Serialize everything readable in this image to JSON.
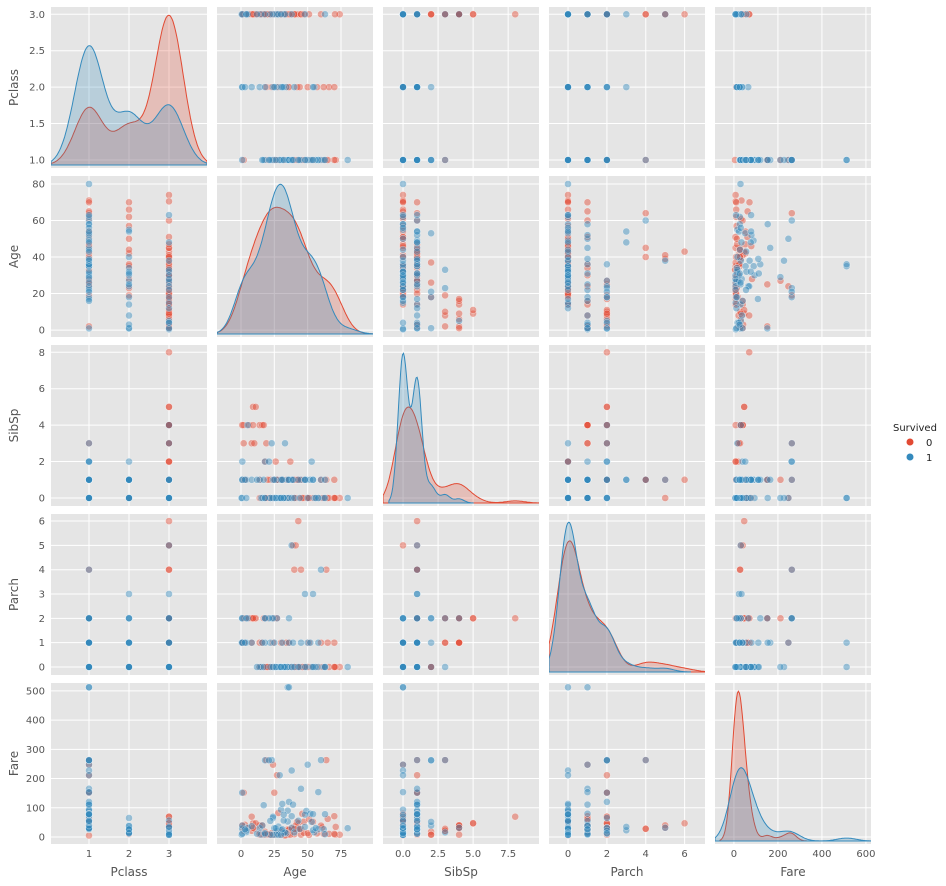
{
  "chart_data": {
    "type": "scatter",
    "kind": "pairplot",
    "variables": [
      "Pclass",
      "Age",
      "SibSp",
      "Parch",
      "Fare"
    ],
    "axes": {
      "Pclass": {
        "range": [
          0.05,
          3.95
        ],
        "ticks": [
          1,
          2,
          3
        ],
        "yticks": [
          "1.0",
          "1.5",
          "2.0",
          "2.5",
          "3.0"
        ],
        "yvals": [
          1,
          1.5,
          2,
          2.5,
          3
        ],
        "yrange": [
          0.89,
          3.1
        ],
        "xticklabels": [
          "1",
          "2",
          "3"
        ]
      },
      "Age": {
        "range": [
          -18,
          99
        ],
        "ticks": [
          0,
          25,
          50,
          75
        ],
        "xticklabels": [
          "0",
          "25",
          "50",
          "75"
        ],
        "yvals": [
          0,
          20,
          40,
          60,
          80
        ],
        "yticks": [
          "0",
          "20",
          "40",
          "60",
          "80"
        ],
        "yrange": [
          -3.8,
          84.4
        ]
      },
      "SibSp": {
        "range": [
          -1.43,
          9.7
        ],
        "ticks": [
          0,
          2.5,
          5,
          7.5
        ],
        "xticklabels": [
          "0.0",
          "2.5",
          "5.0",
          "7.5"
        ],
        "yvals": [
          0,
          2,
          4,
          6,
          8
        ],
        "yticks": [
          "0",
          "2",
          "4",
          "6",
          "8"
        ],
        "yrange": [
          -0.44,
          8.4
        ]
      },
      "Parch": {
        "range": [
          -0.98,
          7.05
        ],
        "ticks": [
          0,
          2,
          4,
          6
        ],
        "xticklabels": [
          "0",
          "2",
          "4",
          "6"
        ],
        "yvals": [
          0,
          1,
          2,
          3,
          4,
          5,
          6
        ],
        "yticks": [
          "0",
          "1",
          "2",
          "3",
          "4",
          "5",
          "6"
        ],
        "yrange": [
          -0.33,
          6.29
        ]
      },
      "Fare": {
        "range": [
          -86,
          623
        ],
        "ticks": [
          0,
          200,
          400,
          600
        ],
        "xticklabels": [
          "0",
          "200",
          "400",
          "600"
        ],
        "yvals": [
          0,
          100,
          200,
          300,
          400,
          500
        ],
        "yticks": [
          "0",
          "100",
          "200",
          "300",
          "400",
          "500"
        ],
        "yrange": [
          -24,
          527
        ]
      }
    },
    "legend": {
      "title": "Survived",
      "entries": [
        "0",
        "1"
      ],
      "placement": "right"
    },
    "colors": {
      "0": "#E24A33",
      "1": "#348ABD",
      "background": "#E5E5E5",
      "grid": "#FFFFFF"
    },
    "columns": [
      "Pclass",
      "Age",
      "SibSp",
      "Parch",
      "Fare",
      "Survived"
    ],
    "points": [
      [
        3,
        22,
        1,
        0,
        7.25,
        0
      ],
      [
        1,
        38,
        1,
        0,
        71.28,
        1
      ],
      [
        3,
        26,
        0,
        0,
        7.93,
        1
      ],
      [
        1,
        35,
        1,
        0,
        53.1,
        1
      ],
      [
        3,
        35,
        0,
        0,
        8.05,
        0
      ],
      [
        1,
        54,
        0,
        0,
        51.86,
        0
      ],
      [
        3,
        2,
        3,
        1,
        21.08,
        0
      ],
      [
        3,
        27,
        0,
        2,
        11.13,
        1
      ],
      [
        2,
        14,
        1,
        0,
        30.07,
        1
      ],
      [
        3,
        4,
        1,
        1,
        16.7,
        1
      ],
      [
        1,
        58,
        0,
        0,
        26.55,
        1
      ],
      [
        3,
        20,
        0,
        0,
        8.05,
        0
      ],
      [
        3,
        39,
        1,
        5,
        31.28,
        0
      ],
      [
        3,
        14,
        0,
        0,
        7.85,
        0
      ],
      [
        2,
        55,
        0,
        0,
        16,
        1
      ],
      [
        3,
        2,
        4,
        1,
        29.13,
        0
      ],
      [
        3,
        31,
        1,
        0,
        18,
        0
      ],
      [
        2,
        35,
        0,
        0,
        26,
        0
      ],
      [
        2,
        34,
        0,
        0,
        13,
        1
      ],
      [
        3,
        15,
        0,
        0,
        8.03,
        1
      ],
      [
        1,
        28,
        0,
        0,
        35.5,
        1
      ],
      [
        3,
        8,
        3,
        1,
        21.08,
        0
      ],
      [
        3,
        38,
        1,
        5,
        31.39,
        1
      ],
      [
        1,
        19,
        3,
        2,
        263,
        0
      ],
      [
        3,
        40,
        1,
        0,
        9.48,
        0
      ],
      [
        2,
        66,
        0,
        0,
        10.5,
        0
      ],
      [
        1,
        28,
        1,
        0,
        82.17,
        0
      ],
      [
        1,
        42,
        1,
        0,
        52,
        0
      ],
      [
        3,
        21,
        0,
        0,
        8.05,
        0
      ],
      [
        3,
        18,
        2,
        0,
        18,
        0
      ],
      [
        3,
        14,
        1,
        0,
        11.24,
        0
      ],
      [
        2,
        27,
        1,
        0,
        21,
        1
      ],
      [
        3,
        3,
        1,
        2,
        41.58,
        0
      ],
      [
        3,
        9,
        5,
        2,
        46.9,
        0
      ],
      [
        3,
        14,
        4,
        1,
        39.69,
        0
      ],
      [
        3,
        16,
        4,
        1,
        39.69,
        0
      ],
      [
        3,
        10,
        3,
        2,
        27.9,
        0
      ],
      [
        1,
        35,
        0,
        0,
        512.33,
        1
      ],
      [
        1,
        36,
        0,
        1,
        512.33,
        1
      ],
      [
        1,
        24,
        0,
        1,
        247.52,
        0
      ],
      [
        1,
        50,
        0,
        1,
        247.52,
        1
      ],
      [
        1,
        23,
        3,
        2,
        263,
        1
      ],
      [
        1,
        64,
        1,
        4,
        263,
        0
      ],
      [
        1,
        60,
        1,
        4,
        263,
        1
      ],
      [
        3,
        43,
        1,
        6,
        46.9,
        0
      ],
      [
        3,
        41,
        0,
        5,
        39.69,
        0
      ],
      [
        3,
        45,
        1,
        4,
        27.9,
        0
      ],
      [
        3,
        40,
        1,
        4,
        27.9,
        0
      ],
      [
        2,
        54,
        1,
        3,
        23,
        1
      ],
      [
        2,
        24,
        1,
        2,
        65,
        1
      ],
      [
        1,
        80,
        0,
        0,
        30,
        1
      ],
      [
        2,
        0.83,
        0,
        2,
        29,
        1
      ],
      [
        3,
        0.42,
        0,
        1,
        8.52,
        1
      ],
      [
        1,
        0.92,
        1,
        2,
        151.55,
        1
      ],
      [
        2,
        1,
        2,
        1,
        39,
        1
      ],
      [
        3,
        1,
        1,
        1,
        11.13,
        1
      ],
      [
        1,
        2,
        1,
        2,
        151.55,
        0
      ],
      [
        3,
        74,
        0,
        0,
        7.78,
        0
      ],
      [
        1,
        71,
        0,
        0,
        34.65,
        0
      ],
      [
        1,
        70,
        1,
        1,
        71,
        0
      ],
      [
        3,
        70.5,
        0,
        0,
        7.75,
        0
      ],
      [
        2,
        70,
        0,
        0,
        10.5,
        0
      ],
      [
        1,
        65,
        0,
        1,
        61.98,
        0
      ],
      [
        1,
        62,
        0,
        0,
        26.55,
        1
      ],
      [
        1,
        63,
        1,
        0,
        77.96,
        1
      ],
      [
        3,
        63,
        0,
        0,
        9.59,
        1
      ],
      [
        1,
        18,
        2,
        2,
        262.38,
        1
      ],
      [
        1,
        24,
        0,
        0,
        69.3,
        1
      ],
      [
        1,
        35,
        1,
        0,
        90,
        1
      ],
      [
        1,
        49,
        1,
        0,
        89.1,
        1
      ],
      [
        1,
        45,
        1,
        1,
        164.87,
        1
      ],
      [
        1,
        17,
        1,
        0,
        108.9,
        1
      ],
      [
        1,
        30,
        0,
        0,
        93.5,
        1
      ],
      [
        1,
        22,
        0,
        1,
        55,
        1
      ],
      [
        1,
        31,
        1,
        0,
        113.28,
        1
      ],
      [
        1,
        36,
        1,
        2,
        120,
        1
      ],
      [
        1,
        38,
        0,
        0,
        227.53,
        1
      ],
      [
        1,
        21,
        2,
        2,
        262.38,
        1
      ],
      [
        1,
        58,
        0,
        1,
        153.46,
        1
      ],
      [
        1,
        25,
        1,
        2,
        151.55,
        0
      ],
      [
        1,
        27,
        1,
        2,
        211.5,
        0
      ],
      [
        3,
        8,
        null,
        2,
        69.55,
        0
      ],
      [
        3,
        null,
        8,
        2,
        69.55,
        0
      ],
      [
        3,
        25,
        0,
        0,
        7.05,
        0
      ],
      [
        3,
        29,
        0,
        0,
        7.9,
        0
      ],
      [
        3,
        33,
        0,
        0,
        8.65,
        0
      ],
      [
        3,
        19,
        0,
        0,
        7.78,
        0
      ],
      [
        3,
        23,
        0,
        0,
        7.23,
        0
      ],
      [
        3,
        30,
        1,
        1,
        15.5,
        0
      ],
      [
        3,
        45,
        0,
        0,
        7.75,
        0
      ],
      [
        3,
        47,
        1,
        0,
        14.5,
        0
      ],
      [
        3,
        51,
        0,
        0,
        7.05,
        0
      ],
      [
        3,
        26,
        2,
        0,
        8.66,
        0
      ],
      [
        3,
        24,
        0,
        0,
        7.5,
        1
      ],
      [
        3,
        22,
        0,
        0,
        7.75,
        1
      ],
      [
        3,
        18,
        0,
        1,
        9.35,
        1
      ],
      [
        3,
        5,
        4,
        2,
        31.39,
        1
      ],
      [
        3,
        4,
        0,
        2,
        22.03,
        1
      ],
      [
        3,
        32,
        0,
        0,
        56.5,
        1
      ],
      [
        3,
        28,
        0,
        0,
        7.23,
        1
      ],
      [
        2,
        28,
        0,
        0,
        13,
        0
      ],
      [
        2,
        36,
        1,
        0,
        26,
        0
      ],
      [
        2,
        42,
        1,
        0,
        26,
        0
      ],
      [
        2,
        30,
        1,
        0,
        24,
        1
      ],
      [
        2,
        25,
        1,
        1,
        30,
        1
      ],
      [
        2,
        19,
        0,
        0,
        10.5,
        0
      ],
      [
        2,
        32,
        0,
        0,
        13,
        1
      ],
      [
        2,
        44,
        1,
        0,
        26,
        0
      ],
      [
        2,
        50,
        0,
        0,
        13,
        0
      ],
      [
        2,
        57,
        0,
        0,
        12.35,
        0
      ],
      [
        2,
        3,
        1,
        1,
        26,
        1
      ],
      [
        2,
        8,
        1,
        1,
        36.75,
        1
      ],
      [
        2,
        40,
        0,
        0,
        15.75,
        1
      ],
      [
        2,
        23,
        0,
        0,
        13,
        0
      ],
      [
        2,
        62,
        0,
        0,
        10.5,
        0
      ],
      [
        1,
        47,
        0,
        0,
        52,
        0
      ],
      [
        1,
        46,
        0,
        0,
        79.2,
        0
      ],
      [
        1,
        56,
        0,
        0,
        30.7,
        1
      ],
      [
        1,
        40,
        0,
        0,
        27.72,
        0
      ],
      [
        1,
        33,
        0,
        0,
        5,
        0
      ],
      [
        1,
        52,
        1,
        1,
        79.65,
        1
      ],
      [
        1,
        39,
        1,
        1,
        110.88,
        1
      ],
      [
        1,
        48,
        1,
        0,
        76.73,
        1
      ],
      [
        1,
        29,
        0,
        0,
        211.34,
        1
      ],
      [
        1,
        32,
        0,
        0,
        76.29,
        1
      ],
      [
        1,
        44,
        0,
        0,
        27.72,
        1
      ],
      [
        1,
        26,
        0,
        0,
        30,
        1
      ],
      [
        1,
        16,
        0,
        1,
        39.4,
        1
      ],
      [
        1,
        53,
        2,
        0,
        51.48,
        1
      ],
      [
        1,
        61,
        0,
        0,
        32.32,
        0
      ],
      [
        3,
        33,
        3,
        0,
        15.85,
        1
      ],
      [
        3,
        20,
        1,
        0,
        9.83,
        0
      ],
      [
        3,
        37,
        2,
        0,
        7.92,
        0
      ],
      [
        3,
        17,
        4,
        2,
        7.93,
        0
      ],
      [
        3,
        11,
        5,
        2,
        46.9,
        0
      ],
      [
        3,
        6,
        4,
        2,
        31.28,
        0
      ],
      [
        3,
        9,
        4,
        2,
        31.28,
        0
      ],
      [
        3,
        12,
        1,
        0,
        11.24,
        1
      ],
      [
        3,
        36,
        1,
        1,
        24.15,
        0
      ],
      [
        3,
        60,
        1,
        1,
        39,
        0
      ],
      [
        3,
        48,
        1,
        3,
        34.38,
        1
      ],
      [
        3,
        30,
        0,
        0,
        7.23,
        1
      ],
      [
        3,
        27,
        1,
        0,
        15.5,
        0
      ],
      [
        2,
        18,
        0,
        2,
        13,
        1
      ],
      [
        2,
        31,
        1,
        1,
        26.25,
        1
      ],
      [
        1,
        54,
        1,
        0,
        78.27,
        1
      ],
      [
        1,
        51,
        0,
        1,
        61.38,
        0
      ],
      [
        1,
        43,
        1,
        0,
        55.44,
        1
      ],
      [
        3,
        34,
        1,
        1,
        14.4,
        0
      ],
      [
        3,
        1,
        4,
        1,
        39.69,
        0
      ]
    ]
  }
}
